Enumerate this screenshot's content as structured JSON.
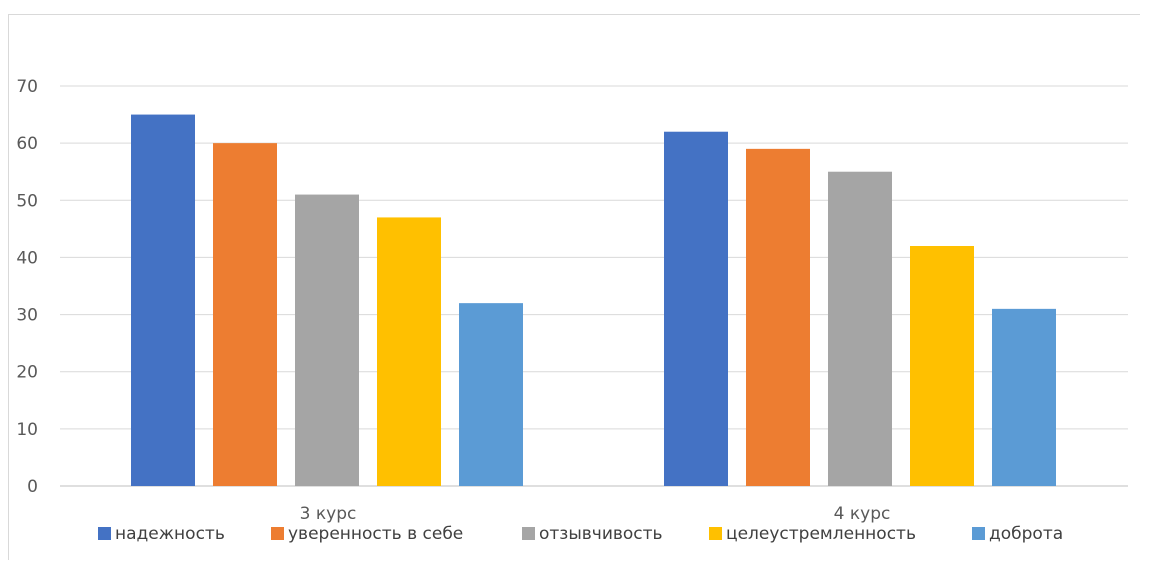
{
  "chart_data": {
    "type": "bar",
    "categories": [
      "3 курс",
      "4 курс"
    ],
    "series": [
      {
        "name": "надежность",
        "values": [
          65,
          62
        ],
        "color": "#4472C4"
      },
      {
        "name": "уверенность в себе",
        "values": [
          60,
          59
        ],
        "color": "#ED7D31"
      },
      {
        "name": "отзывчивость",
        "values": [
          51,
          55
        ],
        "color": "#A5A5A5"
      },
      {
        "name": "целеустремленность",
        "values": [
          47,
          42
        ],
        "color": "#FFC000"
      },
      {
        "name": "доброта",
        "values": [
          32,
          31
        ],
        "color": "#5B9BD5"
      }
    ],
    "yticks": [
      "0",
      "10",
      "20",
      "30",
      "40",
      "50",
      "60",
      "70"
    ],
    "ylim": [
      0,
      70
    ],
    "grid": true,
    "legend": "bottom"
  }
}
